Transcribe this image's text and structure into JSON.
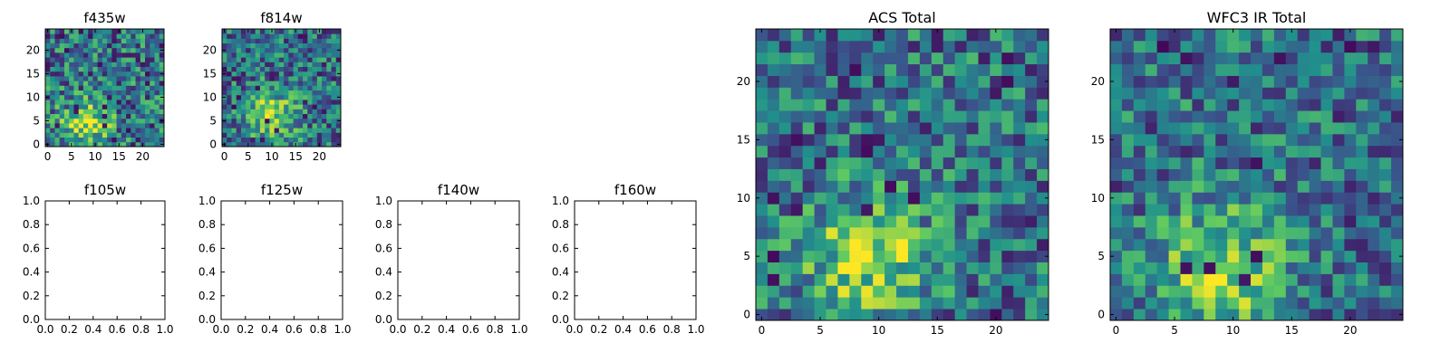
{
  "figure": {
    "background": "#ffffff",
    "colormap": [
      "#440154",
      "#3b528b",
      "#21918c",
      "#5ec962",
      "#fde725"
    ]
  },
  "chart_data": [
    {
      "id": "f435w",
      "type": "heatmap",
      "title": "f435w",
      "grid_size": 25,
      "xlim": [
        0,
        24
      ],
      "ylim": [
        0,
        24
      ],
      "xticks": [
        "0",
        "5",
        "10",
        "15",
        "20"
      ],
      "yticks": [
        "0",
        "5",
        "10",
        "15",
        "20"
      ],
      "hotspot": {
        "x": 8,
        "y": 4
      },
      "noise": 0.34,
      "seed": 11
    },
    {
      "id": "f814w",
      "type": "heatmap",
      "title": "f814w",
      "grid_size": 25,
      "xlim": [
        0,
        24
      ],
      "ylim": [
        0,
        24
      ],
      "xticks": [
        "0",
        "5",
        "10",
        "15",
        "20"
      ],
      "yticks": [
        "0",
        "5",
        "10",
        "15",
        "20"
      ],
      "hotspot": {
        "x": 10,
        "y": 6
      },
      "noise": 0.3,
      "seed": 23
    },
    {
      "id": "f105w",
      "type": "heatmap",
      "title": "f105w",
      "empty": true,
      "xlim": [
        0,
        1
      ],
      "ylim": [
        0,
        1
      ],
      "xticks": [
        "0.0",
        "0.2",
        "0.4",
        "0.6",
        "0.8",
        "1.0"
      ],
      "yticks": [
        "0.0",
        "0.2",
        "0.4",
        "0.6",
        "0.8",
        "1.0"
      ]
    },
    {
      "id": "f125w",
      "type": "heatmap",
      "title": "f125w",
      "empty": true,
      "xlim": [
        0,
        1
      ],
      "ylim": [
        0,
        1
      ],
      "xticks": [
        "0.0",
        "0.2",
        "0.4",
        "0.6",
        "0.8",
        "1.0"
      ],
      "yticks": [
        "0.0",
        "0.2",
        "0.4",
        "0.6",
        "0.8",
        "1.0"
      ]
    },
    {
      "id": "f140w",
      "type": "heatmap",
      "title": "f140w",
      "empty": true,
      "xlim": [
        0,
        1
      ],
      "ylim": [
        0,
        1
      ],
      "xticks": [
        "0.0",
        "0.2",
        "0.4",
        "0.6",
        "0.8",
        "1.0"
      ],
      "yticks": [
        "0.0",
        "0.2",
        "0.4",
        "0.6",
        "0.8",
        "1.0"
      ]
    },
    {
      "id": "f160w",
      "type": "heatmap",
      "title": "f160w",
      "empty": true,
      "xlim": [
        0,
        1
      ],
      "ylim": [
        0,
        1
      ],
      "xticks": [
        "0.0",
        "0.2",
        "0.4",
        "0.6",
        "0.8",
        "1.0"
      ],
      "yticks": [
        "0.0",
        "0.2",
        "0.4",
        "0.6",
        "0.8",
        "1.0"
      ]
    },
    {
      "id": "acs-total",
      "type": "heatmap",
      "title": "ACS Total",
      "grid_size": 25,
      "xlim": [
        0,
        24
      ],
      "ylim": [
        0,
        24
      ],
      "xticks": [
        "0",
        "5",
        "10",
        "15",
        "20"
      ],
      "yticks": [
        "0",
        "5",
        "10",
        "15",
        "20"
      ],
      "hotspot": {
        "x": 9,
        "y": 5
      },
      "noise": 0.3,
      "seed": 37
    },
    {
      "id": "wfc3-ir-total",
      "type": "heatmap",
      "title": "WFC3 IR Total",
      "grid_size": 25,
      "xlim": [
        0,
        24
      ],
      "ylim": [
        0,
        24
      ],
      "xticks": [
        "0",
        "5",
        "10",
        "15",
        "20"
      ],
      "yticks": [
        "0",
        "5",
        "10",
        "15",
        "20"
      ],
      "hotspot": {
        "x": 9,
        "y": 4
      },
      "noise": 0.28,
      "seed": 53
    }
  ]
}
